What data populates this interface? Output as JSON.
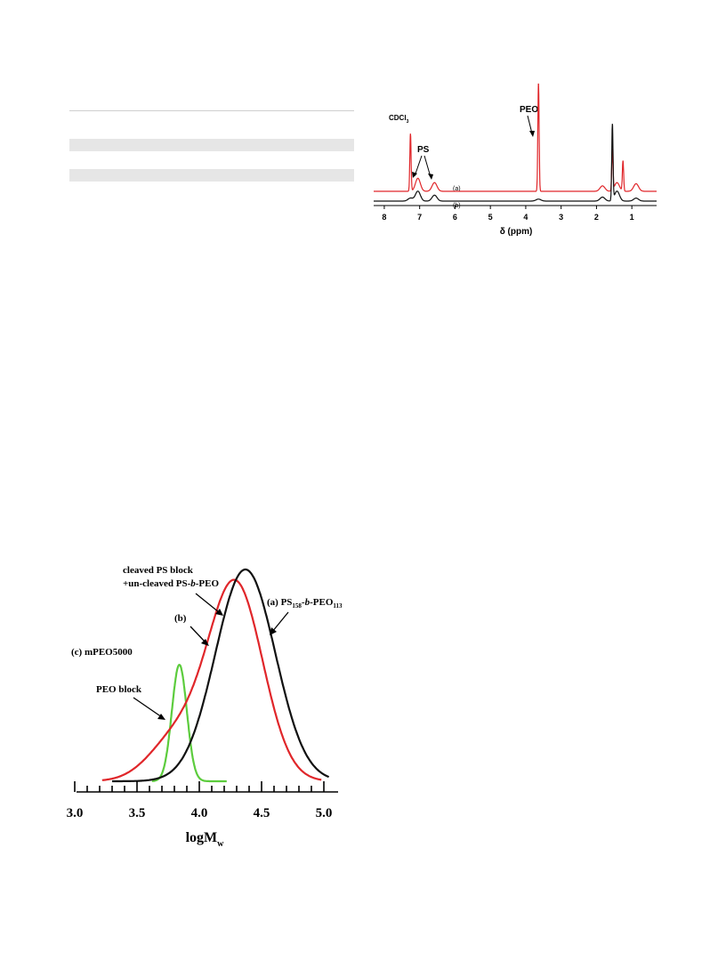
{
  "chart_data": [
    {
      "type": "line",
      "xlabel": "δ (ppm)",
      "xlim": [
        8.3,
        0.3
      ],
      "x_ticks": [
        "8",
        "7",
        "6",
        "5",
        "4",
        "3",
        "2",
        "1"
      ],
      "peak_labels": {
        "solvent": "CDCl",
        "solvent_sub": "3",
        "ps": "PS",
        "peo": "PEO"
      },
      "series": [
        {
          "name": "(a)",
          "color": "#e0262a",
          "peaks": [
            {
              "ppm": 7.26,
              "height": 0.53
            },
            {
              "ppm": 7.05,
              "height": 0.12
            },
            {
              "ppm": 6.58,
              "height": 0.08
            },
            {
              "ppm": 3.64,
              "height": 1.0
            },
            {
              "ppm": 1.83,
              "height": 0.05
            },
            {
              "ppm": 1.55,
              "height": 0.38
            },
            {
              "ppm": 1.42,
              "height": 0.08
            },
            {
              "ppm": 1.25,
              "height": 0.28
            },
            {
              "ppm": 0.88,
              "height": 0.07
            }
          ]
        },
        {
          "name": "(b)",
          "color": "#111111",
          "peaks": [
            {
              "ppm": 7.26,
              "height": 0.03
            },
            {
              "ppm": 7.05,
              "height": 0.1
            },
            {
              "ppm": 6.58,
              "height": 0.06
            },
            {
              "ppm": 3.64,
              "height": 0.02
            },
            {
              "ppm": 1.83,
              "height": 0.04
            },
            {
              "ppm": 1.55,
              "height": 0.76
            },
            {
              "ppm": 1.42,
              "height": 0.1
            },
            {
              "ppm": 0.88,
              "height": 0.03
            }
          ]
        }
      ]
    },
    {
      "type": "line",
      "xlabel": "logM",
      "xlabel_sub": "w",
      "xlim": [
        3.0,
        5.1
      ],
      "x_ticks": [
        "3.0",
        "3.5",
        "4.0",
        "4.5",
        "5.0"
      ],
      "annotations": {
        "cleaved1": "cleaved PS block",
        "cleaved2": "+un-cleaved PS-",
        "cleaved2_italic": "b",
        "cleaved2_end": "-PEO",
        "b": "(b)",
        "a_pre": "(a) PS",
        "a_sub1": "158",
        "a_mid": "-",
        "a_italic": "b",
        "a_mid2": "-PEO",
        "a_sub2": "113",
        "c": "(c) mPEO5000",
        "peo_block": "PEO block"
      },
      "series": [
        {
          "name": "(a)",
          "color": "#111111",
          "mu": 4.37,
          "sigma": 0.24,
          "peak": 1.0,
          "x_start": 3.3,
          "x_end": 5.04
        },
        {
          "name": "(b)",
          "color": "#e0262a",
          "mu": 4.29,
          "sigma": 0.22,
          "peak": 0.93,
          "x_start": 3.22,
          "x_end": 4.98,
          "shoulder": {
            "mu": 3.82,
            "sigma": 0.22,
            "peak": 0.2
          }
        },
        {
          "name": "(c)",
          "color": "#5ccc3d",
          "mu": 3.84,
          "sigma": 0.06,
          "peak": 0.55,
          "x_start": 3.62,
          "x_end": 4.22
        }
      ]
    }
  ]
}
